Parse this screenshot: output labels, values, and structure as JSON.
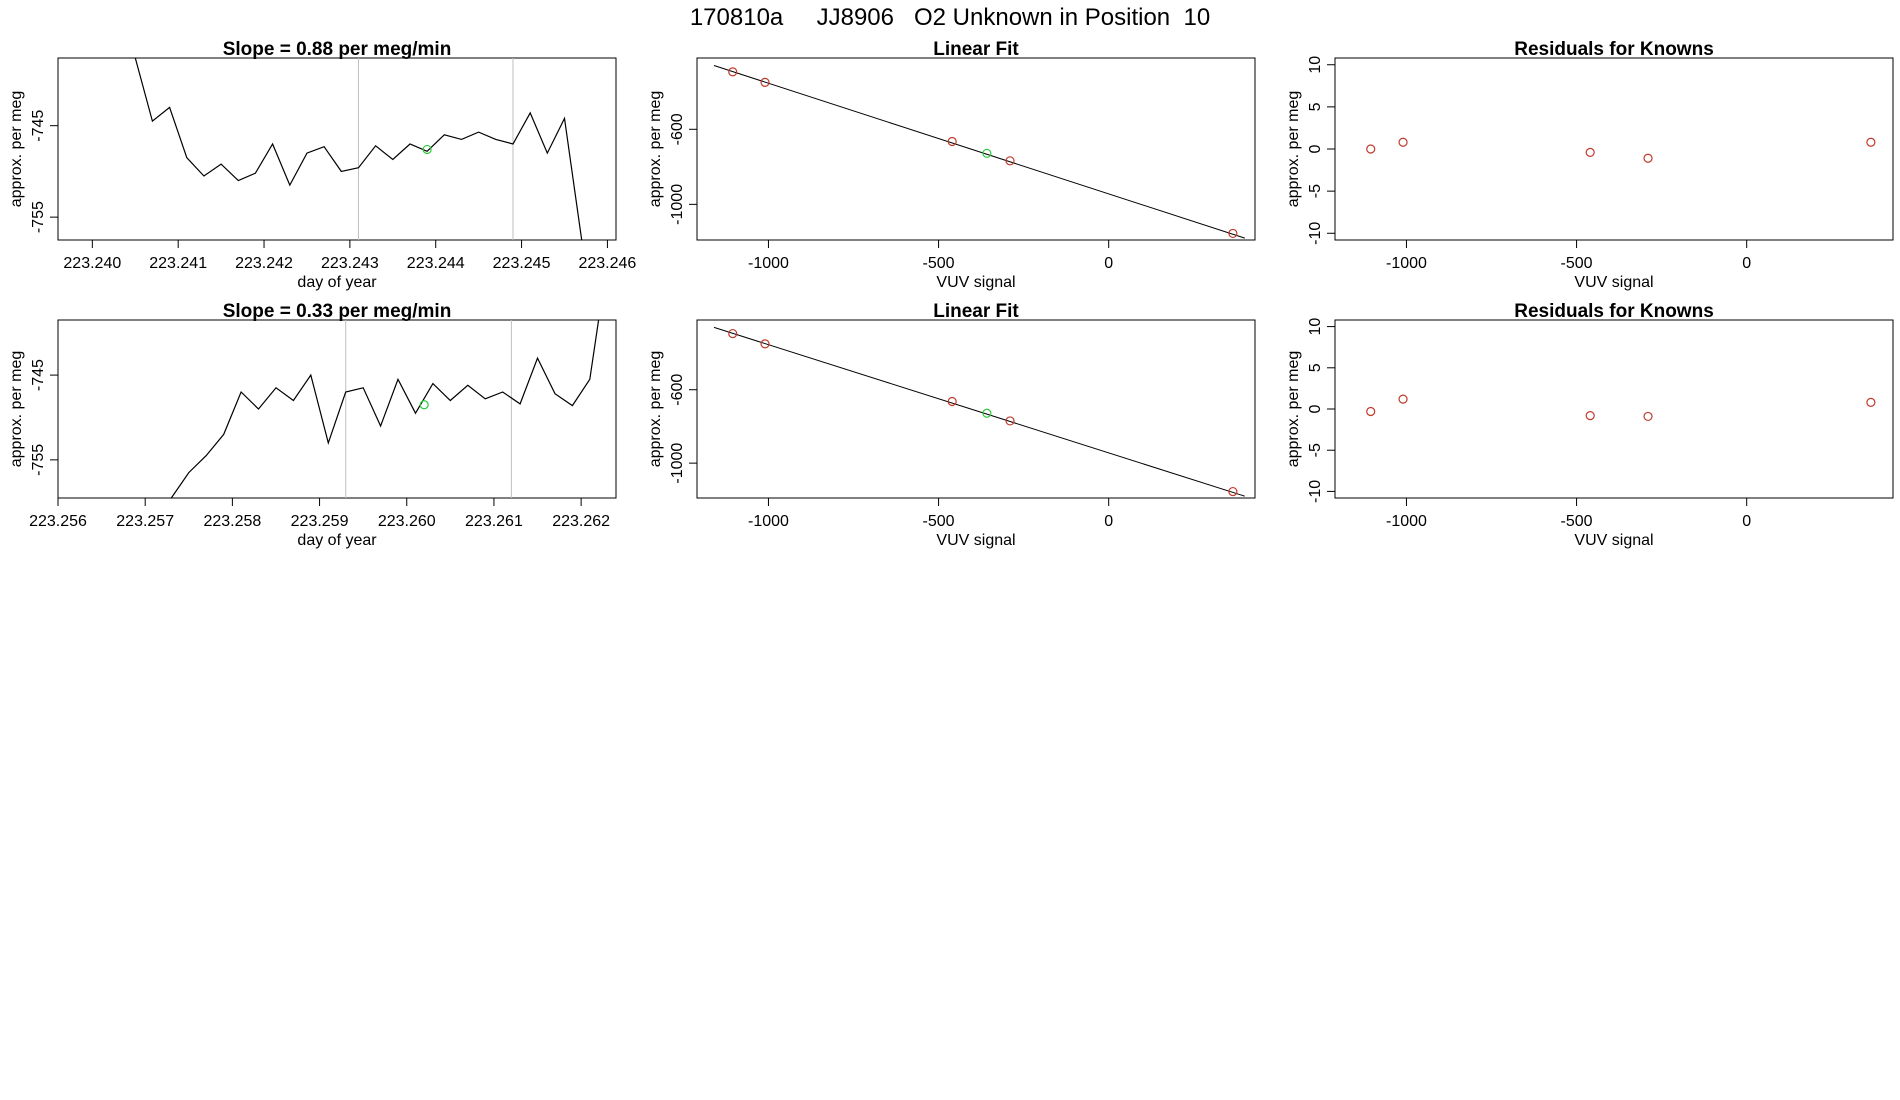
{
  "page_title": "170810a     JJ8906   O2 Unknown in Position  10",
  "colors": {
    "line": "#000000",
    "known": "#c0392b",
    "unknown": "#2ecc40",
    "marker": "#bfbfbf",
    "frame": "#000000"
  },
  "chart_data": [
    {
      "type": "line",
      "title": "Slope =  0.88  per meg/min",
      "xlabel": "day of year",
      "ylabel": "approx. per meg",
      "xlim": [
        223.2396,
        223.2461
      ],
      "ylim": [
        -757.5,
        -737.6
      ],
      "xticks": [
        "223.240",
        "223.241",
        "223.242",
        "223.243",
        "223.244",
        "223.245",
        "223.246"
      ],
      "yticks": [
        "-745",
        "-755"
      ],
      "vlines": [
        223.2431,
        223.2449
      ],
      "unknown_point": {
        "x": 223.2439,
        "y": -747.6
      },
      "x": [
        223.2405,
        223.2407,
        223.2409,
        223.2411,
        223.2413,
        223.2415,
        223.2417,
        223.2419,
        223.2421,
        223.2423,
        223.2425,
        223.2427,
        223.2429,
        223.2431,
        223.2433,
        223.2435,
        223.2437,
        223.2439,
        223.2441,
        223.2443,
        223.2445,
        223.2447,
        223.2449,
        223.2451,
        223.2453,
        223.2455,
        223.2457
      ],
      "y": [
        -737.6,
        -744.5,
        -743,
        -748.5,
        -750.5,
        -749.2,
        -751,
        -750.2,
        -747,
        -751.5,
        -748,
        -747.3,
        -750,
        -749.6,
        -747.2,
        -748.7,
        -747,
        -747.8,
        -746,
        -746.5,
        -745.7,
        -746.5,
        -747,
        -743.6,
        -748,
        -744.2,
        -757.5
      ]
    },
    {
      "type": "scatter",
      "title": "Linear Fit",
      "xlabel": "VUV signal",
      "ylabel": "approx. per meg",
      "xlim": [
        -1210,
        430
      ],
      "ylim": [
        -1190,
        -220
      ],
      "xticks": [
        -1000,
        -500,
        0
      ],
      "yticks": [
        -600,
        -1000
      ],
      "fit_line": {
        "x": [
          -1160,
          400
        ],
        "y": [
          -260,
          -1180
        ]
      },
      "known_points": {
        "x": [
          -1105,
          -1010,
          -460,
          -290,
          365
        ],
        "y": [
          -294,
          -350,
          -665,
          -768,
          -1155
        ]
      },
      "unknown_points": {
        "x": [
          -358
        ],
        "y": [
          -728
        ]
      }
    },
    {
      "type": "scatter",
      "title": "Residuals for Knowns",
      "xlabel": "VUV signal",
      "ylabel": "approx. per meg",
      "xlim": [
        -1210,
        430
      ],
      "ylim": [
        -10.8,
        10.8
      ],
      "xticks": [
        -1000,
        -500,
        0
      ],
      "yticks": [
        10,
        5,
        0,
        -5,
        -10
      ],
      "known_points": {
        "x": [
          -1105,
          -1010,
          -460,
          -290,
          365
        ],
        "y": [
          0,
          0.8,
          -0.4,
          -1.1,
          0.8
        ]
      }
    },
    {
      "type": "line",
      "title": "Slope =  0.33  per meg/min",
      "xlabel": "day of year",
      "ylabel": "approx. per meg",
      "xlim": [
        223.256,
        223.2624
      ],
      "ylim": [
        -759.5,
        -738.5
      ],
      "xticks": [
        "223.256",
        "223.257",
        "223.258",
        "223.259",
        "223.260",
        "223.261",
        "223.262"
      ],
      "yticks": [
        "-745",
        "-755"
      ],
      "vlines": [
        223.2593,
        223.2612
      ],
      "unknown_point": {
        "x": 223.2602,
        "y": -748.5
      },
      "x": [
        223.2573,
        223.2575,
        223.2577,
        223.2579,
        223.2581,
        223.2583,
        223.2585,
        223.2587,
        223.2589,
        223.2591,
        223.2593,
        223.2595,
        223.2597,
        223.2599,
        223.2601,
        223.2603,
        223.2605,
        223.2607,
        223.2609,
        223.2611,
        223.2613,
        223.2615,
        223.2617,
        223.2619,
        223.2621,
        223.2622
      ],
      "y": [
        -759.5,
        -756.5,
        -754.5,
        -752,
        -747,
        -749,
        -746.5,
        -748,
        -745,
        -753,
        -747,
        -746.5,
        -751,
        -745.5,
        -749.5,
        -746,
        -748,
        -746.2,
        -747.8,
        -747,
        -748.4,
        -743,
        -747.2,
        -748.6,
        -745.5,
        -738.5
      ]
    },
    {
      "type": "scatter",
      "title": "Linear Fit",
      "xlabel": "VUV signal",
      "ylabel": "approx. per meg",
      "xlim": [
        -1210,
        430
      ],
      "ylim": [
        -1190,
        -220
      ],
      "xticks": [
        -1000,
        -500,
        0
      ],
      "yticks": [
        -600,
        -1000
      ],
      "fit_line": {
        "x": [
          -1160,
          400
        ],
        "y": [
          -260,
          -1180
        ]
      },
      "known_points": {
        "x": [
          -1105,
          -1010,
          -460,
          -290,
          365
        ],
        "y": [
          -294,
          -350,
          -664,
          -770,
          -1155
        ]
      },
      "unknown_points": {
        "x": [
          -358
        ],
        "y": [
          -728
        ]
      }
    },
    {
      "type": "scatter",
      "title": "Residuals for Knowns",
      "xlabel": "VUV signal",
      "ylabel": "approx. per meg",
      "xlim": [
        -1210,
        430
      ],
      "ylim": [
        -10.8,
        10.8
      ],
      "xticks": [
        -1000,
        -500,
        0
      ],
      "yticks": [
        10,
        5,
        0,
        -5,
        -10
      ],
      "known_points": {
        "x": [
          -1105,
          -1010,
          -460,
          -290,
          365
        ],
        "y": [
          -0.3,
          1.2,
          -0.8,
          -0.9,
          0.8
        ]
      }
    }
  ]
}
